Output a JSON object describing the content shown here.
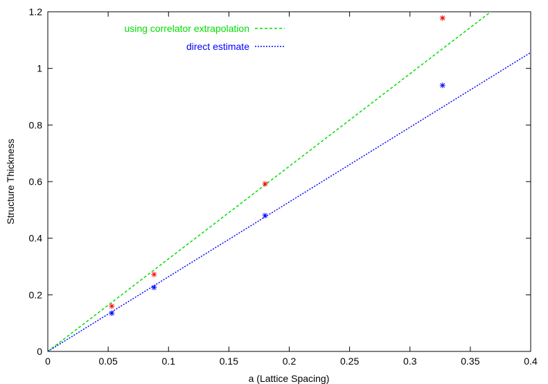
{
  "chart_data": {
    "type": "scatter",
    "xlabel": "a (Lattice Spacing)",
    "ylabel": "Structure Thickness",
    "xlim": [
      0,
      0.4
    ],
    "ylim": [
      0,
      1.2
    ],
    "x_ticks": [
      "0",
      "0.05",
      "0.1",
      "0.15",
      "0.2",
      "0.25",
      "0.3",
      "0.35",
      "0.4"
    ],
    "y_ticks": [
      "0",
      "0.2",
      "0.4",
      "0.6",
      "0.8",
      "1",
      "1.2"
    ],
    "grid": false,
    "legend_position": "top-left",
    "series": [
      {
        "name": "using correlator extrapolation",
        "color": "#00dd00",
        "line_style": "dashed",
        "fit_line": {
          "slope": 3.27,
          "intercept": 0
        },
        "point_color": "#ff0000",
        "points": [
          {
            "x": 0.053,
            "y": 0.16
          },
          {
            "x": 0.088,
            "y": 0.272
          },
          {
            "x": 0.18,
            "y": 0.592
          },
          {
            "x": 0.327,
            "y": 1.178
          }
        ]
      },
      {
        "name": "direct estimate",
        "color": "#0000ff",
        "line_style": "dotted",
        "fit_line": {
          "slope": 2.64,
          "intercept": 0
        },
        "point_color": "#0000ff",
        "points": [
          {
            "x": 0.053,
            "y": 0.135
          },
          {
            "x": 0.088,
            "y": 0.226
          },
          {
            "x": 0.18,
            "y": 0.48
          },
          {
            "x": 0.327,
            "y": 0.94
          }
        ]
      }
    ]
  }
}
